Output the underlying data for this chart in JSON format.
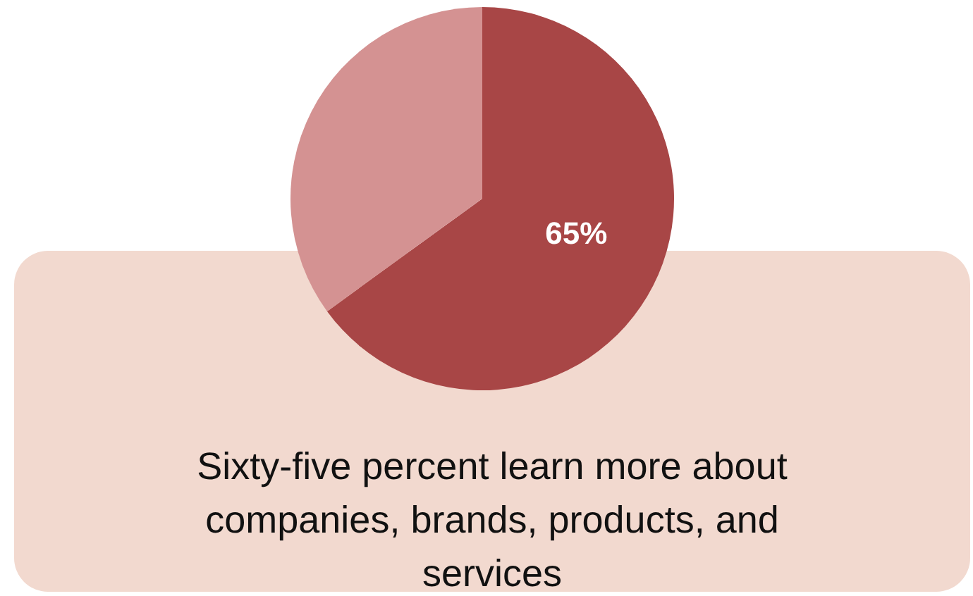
{
  "chart_data": {
    "type": "pie",
    "categories": [
      null,
      null
    ],
    "values": [
      65,
      35
    ],
    "colors": [
      "#a84646",
      "#d49292"
    ],
    "value_labels": [
      "65%",
      null
    ],
    "annotations": [
      "Sixty-five percent learn more about companies, brands, products, and services"
    ]
  }
}
